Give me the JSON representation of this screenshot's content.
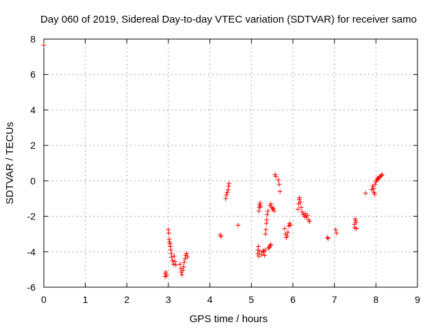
{
  "chart_data": {
    "type": "scatter",
    "title": "Day 060 of 2019, Sidereal Day-to-day VTEC variation (SDTVAR) for receiver samo",
    "xlabel": "GPS time / hours",
    "ylabel": "SDTVAR / TECUs",
    "xlim": [
      0,
      9
    ],
    "ylim": [
      -6,
      8
    ],
    "xticks": [
      "0",
      "1",
      "2",
      "3",
      "4",
      "5",
      "6",
      "7",
      "8",
      "9"
    ],
    "yticks": [
      "-6",
      "-4",
      "-2",
      "0",
      "2",
      "4",
      "6",
      "8"
    ],
    "grid": true,
    "marker": "plus",
    "color": "#ff0000",
    "points": [
      [
        0.0,
        7.65
      ],
      [
        2.92,
        -5.4
      ],
      [
        2.93,
        -5.25
      ],
      [
        2.94,
        -5.15
      ],
      [
        2.96,
        -5.35
      ],
      [
        3.0,
        -2.75
      ],
      [
        3.01,
        -2.95
      ],
      [
        3.02,
        -3.3
      ],
      [
        3.03,
        -3.45
      ],
      [
        3.04,
        -3.55
      ],
      [
        3.05,
        -3.7
      ],
      [
        3.06,
        -3.9
      ],
      [
        3.07,
        -4.1
      ],
      [
        3.08,
        -4.3
      ],
      [
        3.1,
        -4.5
      ],
      [
        3.12,
        -4.7
      ],
      [
        3.14,
        -4.25
      ],
      [
        3.16,
        -4.55
      ],
      [
        3.18,
        -4.75
      ],
      [
        3.28,
        -4.7
      ],
      [
        3.3,
        -4.95
      ],
      [
        3.31,
        -5.15
      ],
      [
        3.33,
        -5.3
      ],
      [
        3.35,
        -5.05
      ],
      [
        3.37,
        -4.85
      ],
      [
        3.38,
        -4.6
      ],
      [
        3.4,
        -4.4
      ],
      [
        3.42,
        -4.2
      ],
      [
        3.44,
        -4.1
      ],
      [
        3.46,
        -4.3
      ],
      [
        4.25,
        -3.05
      ],
      [
        4.27,
        -3.15
      ],
      [
        4.38,
        -1.0
      ],
      [
        4.4,
        -0.8
      ],
      [
        4.42,
        -0.65
      ],
      [
        4.44,
        -0.5
      ],
      [
        4.45,
        -0.3
      ],
      [
        4.46,
        -0.15
      ],
      [
        4.68,
        -2.5
      ],
      [
        5.15,
        -4.1
      ],
      [
        5.16,
        -3.9
      ],
      [
        5.17,
        -3.7
      ],
      [
        5.18,
        -4.25
      ],
      [
        5.2,
        -4.0
      ],
      [
        5.18,
        -1.7
      ],
      [
        5.19,
        -1.5
      ],
      [
        5.2,
        -1.35
      ],
      [
        5.21,
        -1.25
      ],
      [
        5.22,
        -1.45
      ],
      [
        5.25,
        -4.15
      ],
      [
        5.28,
        -3.95
      ],
      [
        5.3,
        -4.0
      ],
      [
        5.32,
        -4.2
      ],
      [
        5.33,
        -3.9
      ],
      [
        5.34,
        -3.0
      ],
      [
        5.35,
        -2.75
      ],
      [
        5.36,
        -2.4
      ],
      [
        5.37,
        -2.2
      ],
      [
        5.38,
        -1.9
      ],
      [
        5.4,
        -1.7
      ],
      [
        5.41,
        -3.8
      ],
      [
        5.43,
        -3.75
      ],
      [
        5.45,
        -3.65
      ],
      [
        5.47,
        -3.6
      ],
      [
        5.45,
        -1.4
      ],
      [
        5.47,
        -1.3
      ],
      [
        5.49,
        -1.5
      ],
      [
        5.51,
        -1.6
      ],
      [
        5.53,
        -1.55
      ],
      [
        5.55,
        -1.7
      ],
      [
        5.57,
        0.35
      ],
      [
        5.59,
        0.25
      ],
      [
        5.65,
        0.05
      ],
      [
        5.67,
        -0.2
      ],
      [
        5.69,
        -0.6
      ],
      [
        5.8,
        -2.7
      ],
      [
        5.82,
        -3.0
      ],
      [
        5.84,
        -3.2
      ],
      [
        5.86,
        -3.1
      ],
      [
        5.88,
        -2.9
      ],
      [
        5.9,
        -2.55
      ],
      [
        5.92,
        -2.4
      ],
      [
        5.94,
        -2.5
      ],
      [
        6.12,
        -1.6
      ],
      [
        6.14,
        -1.3
      ],
      [
        6.15,
        -1.05
      ],
      [
        6.16,
        -0.95
      ],
      [
        6.18,
        -1.2
      ],
      [
        6.2,
        -1.5
      ],
      [
        6.22,
        -1.75
      ],
      [
        6.25,
        -1.9
      ],
      [
        6.28,
        -2.0
      ],
      [
        6.3,
        -1.85
      ],
      [
        6.32,
        -2.05
      ],
      [
        6.35,
        -1.95
      ],
      [
        6.38,
        -2.2
      ],
      [
        6.4,
        -2.3
      ],
      [
        6.83,
        -3.2
      ],
      [
        6.85,
        -3.25
      ],
      [
        7.03,
        -2.75
      ],
      [
        7.05,
        -2.95
      ],
      [
        7.48,
        -2.45
      ],
      [
        7.49,
        -2.65
      ],
      [
        7.5,
        -2.15
      ],
      [
        7.51,
        -2.25
      ],
      [
        7.52,
        -2.35
      ],
      [
        7.53,
        -2.7
      ],
      [
        7.75,
        -0.7
      ],
      [
        7.9,
        -0.5
      ],
      [
        7.92,
        -0.3
      ],
      [
        7.94,
        -0.45
      ],
      [
        7.95,
        -0.65
      ],
      [
        7.97,
        -0.75
      ],
      [
        7.98,
        -0.2
      ],
      [
        8.0,
        -0.05
      ],
      [
        8.02,
        0.05
      ],
      [
        8.04,
        0.15
      ],
      [
        8.06,
        0.1
      ],
      [
        8.08,
        0.2
      ],
      [
        8.1,
        0.25
      ],
      [
        8.13,
        0.3
      ],
      [
        8.15,
        0.35
      ]
    ]
  }
}
